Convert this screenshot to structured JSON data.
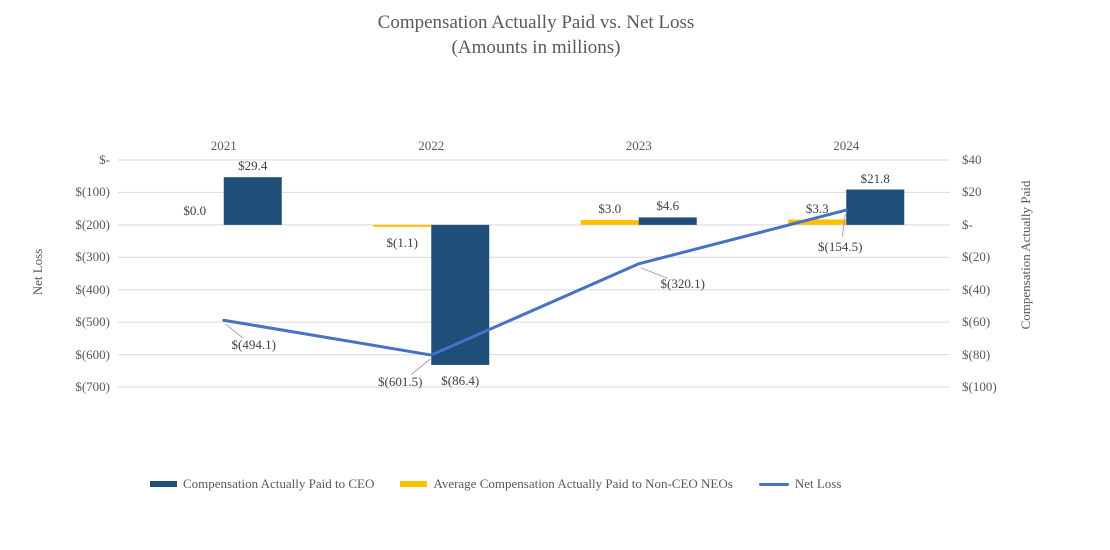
{
  "title": {
    "line1": "Compensation Actually Paid vs. Net Loss",
    "line2": "(Amounts in millions)"
  },
  "chart_data": {
    "type": "combo-bar-line",
    "categories": [
      "2021",
      "2022",
      "2023",
      "2024"
    ],
    "series": [
      {
        "name": "Compensation Actually Paid to CEO",
        "type": "bar",
        "axis": "right",
        "color": "#1F4E79",
        "values": [
          29.4,
          -86.4,
          4.6,
          21.8
        ],
        "labels": [
          "$29.4",
          "$(86.4)",
          "$4.6",
          "$21.8"
        ]
      },
      {
        "name": "Average Compensation Actually Paid to Non-CEO NEOs",
        "type": "bar",
        "axis": "right",
        "color": "#FFC000",
        "values": [
          0.0,
          -1.1,
          3.0,
          3.3
        ],
        "labels": [
          "$0.0",
          "$(1.1)",
          "$3.0",
          "$3.3"
        ]
      },
      {
        "name": "Net Loss",
        "type": "line",
        "axis": "left",
        "color": "#4472C4",
        "values": [
          -494.1,
          -601.5,
          -320.1,
          -154.5
        ],
        "labels": [
          "$(494.1)",
          "$(601.5)",
          "$(320.1)",
          "$(154.5)"
        ]
      }
    ],
    "left_axis": {
      "title": "Net Loss",
      "range": [
        0,
        -700
      ],
      "ticks": [
        "$-",
        "$(100)",
        "$(200)",
        "$(300)",
        "$(400)",
        "$(500)",
        "$(600)",
        "$(700)"
      ]
    },
    "right_axis": {
      "title": "Compensation Actually Paid",
      "range": [
        40,
        -100
      ],
      "ticks": [
        "$40",
        "$20",
        "$-",
        "$(20)",
        "$(40)",
        "$(60)",
        "$(80)",
        "$(100)"
      ]
    },
    "grid": true,
    "legend_position": "bottom"
  },
  "legend": {
    "items": [
      {
        "label": "Compensation Actually Paid to CEO",
        "color": "#1F4E79",
        "type": "bar"
      },
      {
        "label": "Average Compensation Actually Paid to Non-CEO NEOs",
        "color": "#FFC000",
        "type": "bar"
      },
      {
        "label": "Net Loss",
        "color": "#4472C4",
        "type": "line"
      }
    ]
  },
  "colors": {
    "grid": "#D9D9D9",
    "leader": "#A6A6A6",
    "axis_text": "#595959",
    "label_text": "#404040"
  }
}
